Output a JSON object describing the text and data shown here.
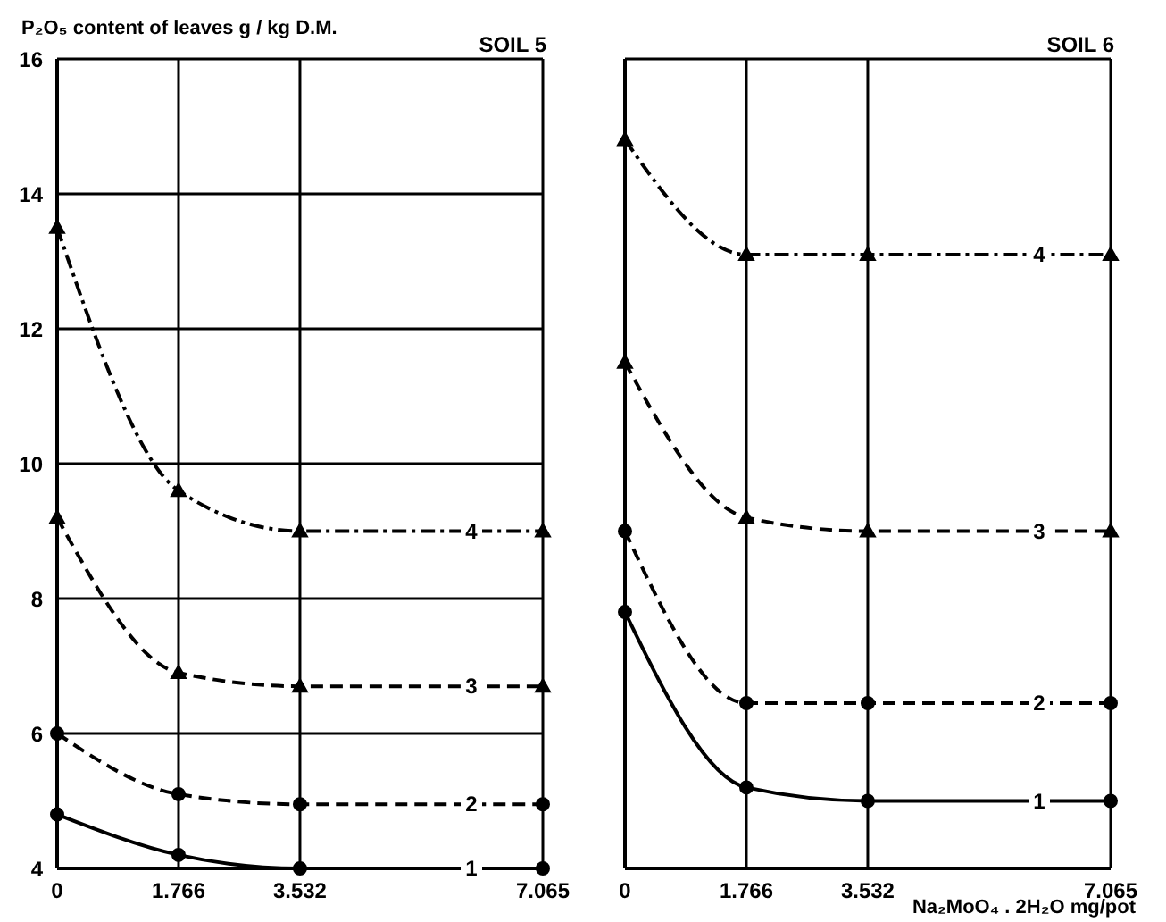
{
  "chart_data": [
    {
      "type": "line",
      "title": "SOIL 5",
      "ylabel": "P₂O₅ content of leaves g / kg D.M.",
      "x": [
        0,
        1.766,
        3.532,
        7.065
      ],
      "xlim": [
        0,
        7.065
      ],
      "xticks": [
        0,
        1.766,
        3.532,
        7.065
      ],
      "ylim": [
        4,
        16
      ],
      "yticks": [
        4,
        6,
        8,
        10,
        12,
        14,
        16
      ],
      "grid": true,
      "series": [
        {
          "name": "1",
          "color": "#000000",
          "values": [
            4.8,
            4.2,
            4.0,
            4.0
          ],
          "line_style": "solid",
          "marker": "circle"
        },
        {
          "name": "2",
          "color": "#000000",
          "values": [
            6.0,
            5.1,
            4.95,
            4.95
          ],
          "line_style": "dashed",
          "marker": "circle"
        },
        {
          "name": "3",
          "color": "#000000",
          "values": [
            9.2,
            6.9,
            6.7,
            6.7
          ],
          "line_style": "dashed",
          "marker": "triangle"
        },
        {
          "name": "4",
          "color": "#000000",
          "values": [
            13.5,
            9.6,
            9.0,
            9.0
          ],
          "line_style": "dotted",
          "marker": "triangle"
        }
      ]
    },
    {
      "type": "line",
      "title": "SOIL 6",
      "xlabel": "Na₂MoO₄ . 2H₂O mg/pot",
      "x": [
        0,
        1.766,
        3.532,
        7.065
      ],
      "xlim": [
        0,
        7.065
      ],
      "xticks": [
        0,
        1.766,
        3.532,
        7.065
      ],
      "ylim": [
        4,
        16
      ],
      "yticks": [
        4,
        6,
        8,
        10,
        12,
        14,
        16
      ],
      "tick_labels": "x",
      "grid": true,
      "series": [
        {
          "name": "1",
          "color": "#000000",
          "values": [
            7.8,
            5.2,
            5.0,
            5.0
          ],
          "line_style": "solid",
          "marker": "circle"
        },
        {
          "name": "2",
          "color": "#000000",
          "values": [
            9.0,
            6.45,
            6.45,
            6.45
          ],
          "line_style": "dashed",
          "marker": "circle"
        },
        {
          "name": "3",
          "color": "#000000",
          "values": [
            11.5,
            9.2,
            9.0,
            9.0
          ],
          "line_style": "dashed",
          "marker": "triangle"
        },
        {
          "name": "4",
          "color": "#000000",
          "values": [
            14.8,
            13.1,
            13.1,
            13.1
          ],
          "line_style": "dotted",
          "marker": "triangle"
        }
      ]
    }
  ]
}
